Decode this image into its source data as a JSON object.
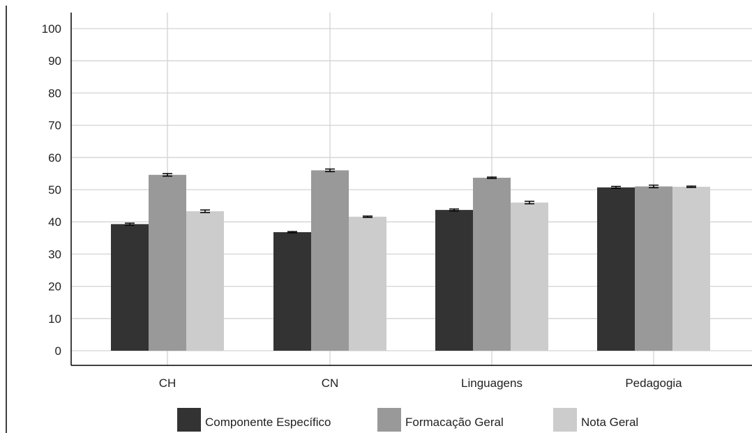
{
  "chart_data": {
    "type": "bar",
    "title": "",
    "xlabel": "",
    "ylabel": "",
    "categories": [
      "CH",
      "CN",
      "Linguagens",
      "Pedagogia"
    ],
    "series": [
      {
        "name": "Componente Específico",
        "color": "#333333",
        "values": [
          39.3,
          36.8,
          43.7,
          50.7
        ],
        "error": [
          0.3,
          0.2,
          0.3,
          0.3
        ]
      },
      {
        "name": "Formacação Geral",
        "color": "#999999",
        "values": [
          54.6,
          56.0,
          53.7,
          51.0
        ],
        "error": [
          0.4,
          0.4,
          0.2,
          0.4
        ]
      },
      {
        "name": "Nota Geral",
        "color": "#cccccc",
        "values": [
          43.3,
          41.6,
          46.0,
          50.9
        ],
        "error": [
          0.4,
          0.2,
          0.4,
          0.2
        ]
      }
    ],
    "yticks": [
      0,
      10,
      20,
      30,
      40,
      50,
      60,
      70,
      80,
      90,
      100
    ],
    "ylim": [
      0,
      100
    ],
    "grid": true,
    "legend_position": "bottom",
    "error_bars": true
  }
}
